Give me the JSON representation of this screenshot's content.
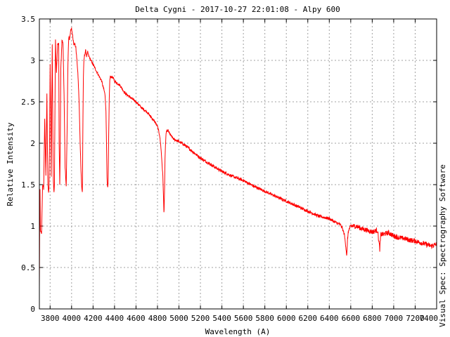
{
  "chart_data": {
    "type": "line",
    "title": "Delta Cygni - 2017-10-27 22:01:08 - Alpy 600",
    "xlabel": "Wavelength (A)",
    "ylabel": "Relative Intensity",
    "side_label": "Visual Spec: Spectrography Software",
    "xlim": [
      3700,
      7400
    ],
    "ylim": [
      0,
      3.5
    ],
    "x_ticks": [
      3800,
      4000,
      4200,
      4400,
      4600,
      4800,
      5000,
      5200,
      5400,
      5600,
      5800,
      6000,
      6200,
      6400,
      6600,
      6800,
      7000,
      7200,
      7400
    ],
    "y_ticks": [
      "0",
      "0.5",
      "1",
      "1.5",
      "2",
      "2.5",
      "3",
      "3.5"
    ],
    "grid": true,
    "line_color": "#ff0000",
    "series": [
      {
        "x": [
          3700,
          3705,
          3710,
          3720,
          3730,
          3740,
          3750,
          3760,
          3770,
          3775,
          3780,
          3785,
          3790,
          3795,
          3800,
          3805,
          3810,
          3820,
          3825,
          3830,
          3836,
          3840,
          3845,
          3850,
          3855,
          3860,
          3870,
          3880,
          3884,
          3890,
          3895,
          3900,
          3910,
          3920,
          3930,
          3940,
          3950,
          3960,
          3965,
          3970,
          3975,
          3980,
          3990,
          4000,
          4010,
          4020,
          4030,
          4040,
          4050,
          4060,
          4070,
          4080,
          4090,
          4095,
          4101,
          4105,
          4110,
          4115,
          4120,
          4130,
          4140,
          4150,
          4160,
          4180,
          4200,
          4220,
          4240,
          4260,
          4280,
          4290,
          4300,
          4310,
          4320,
          4330,
          4335,
          4340,
          4345,
          4350,
          4355,
          4360,
          4380,
          4400,
          4450,
          4500,
          4550,
          4600,
          4650,
          4700,
          4750,
          4780,
          4800,
          4820,
          4830,
          4840,
          4850,
          4855,
          4861,
          4865,
          4870,
          4875,
          4880,
          4890,
          4900,
          4920,
          4950,
          5000,
          5050,
          5100,
          5200,
          5300,
          5400,
          5500,
          5600,
          5700,
          5800,
          5900,
          6000,
          6100,
          6200,
          6300,
          6400,
          6450,
          6500,
          6520,
          6540,
          6550,
          6560,
          6563,
          6566,
          6570,
          6580,
          6600,
          6650,
          6700,
          6750,
          6800,
          6850,
          6870,
          6880,
          6900,
          6950,
          7000,
          7050,
          7100,
          7150,
          7200,
          7250,
          7300,
          7350,
          7400
        ],
        "y": [
          0.25,
          1.55,
          0.95,
          0.9,
          1.5,
          1.45,
          2.3,
          1.6,
          2.6,
          1.9,
          1.5,
          1.4,
          1.45,
          2.05,
          2.95,
          2.45,
          1.6,
          3.2,
          2.3,
          1.55,
          1.4,
          1.5,
          2.4,
          3.25,
          3.0,
          2.85,
          3.2,
          3.2,
          2.0,
          1.5,
          2.0,
          2.9,
          3.25,
          3.2,
          2.6,
          1.7,
          1.48,
          2.3,
          2.9,
          3.15,
          3.3,
          3.25,
          3.35,
          3.38,
          3.3,
          3.2,
          3.2,
          3.15,
          3.0,
          2.8,
          2.5,
          2.0,
          1.6,
          1.45,
          1.4,
          2.2,
          2.8,
          3.0,
          3.05,
          3.12,
          3.05,
          3.1,
          3.05,
          3.0,
          2.95,
          2.9,
          2.85,
          2.8,
          2.75,
          2.7,
          2.65,
          2.6,
          2.4,
          1.6,
          1.45,
          1.5,
          2.0,
          2.5,
          2.75,
          2.8,
          2.8,
          2.75,
          2.7,
          2.6,
          2.55,
          2.5,
          2.43,
          2.38,
          2.3,
          2.25,
          2.2,
          2.1,
          1.98,
          1.8,
          1.6,
          1.4,
          1.12,
          1.4,
          1.8,
          2.0,
          2.12,
          2.15,
          2.15,
          2.1,
          2.05,
          2.02,
          1.98,
          1.93,
          1.82,
          1.74,
          1.66,
          1.6,
          1.55,
          1.48,
          1.42,
          1.36,
          1.3,
          1.24,
          1.18,
          1.12,
          1.09,
          1.05,
          1.02,
          0.98,
          0.9,
          0.8,
          0.68,
          0.64,
          0.7,
          0.85,
          0.95,
          1.0,
          1.0,
          0.97,
          0.95,
          0.93,
          0.95,
          0.72,
          0.9,
          0.9,
          0.92,
          0.88,
          0.86,
          0.85,
          0.83,
          0.82,
          0.8,
          0.78,
          0.76,
          0.78
        ]
      }
    ]
  }
}
